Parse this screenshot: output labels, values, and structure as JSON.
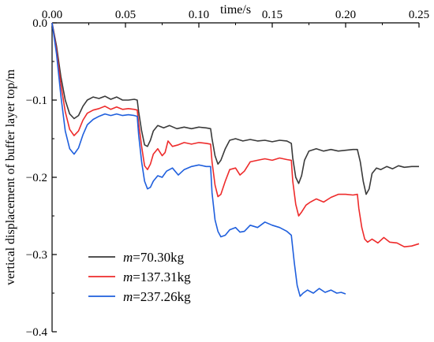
{
  "chart_data": {
    "type": "line",
    "xlabel": "time/s",
    "ylabel": "vertical displacement of buffer layer top/m",
    "xlim": [
      0,
      0.25
    ],
    "ylim": [
      -0.4,
      0
    ],
    "x_axis_position": "top",
    "x_ticks": [
      0.0,
      0.05,
      0.1,
      0.15,
      0.2,
      0.25
    ],
    "x_tick_labels": [
      "0.00",
      "0.05",
      "0.10",
      "0.15",
      "0.20",
      "0.25"
    ],
    "y_ticks": [
      0.0,
      -0.1,
      -0.2,
      -0.3,
      -0.4
    ],
    "y_tick_labels": [
      "0.0",
      "−0.1",
      "−0.2",
      "−0.3",
      "−0.4"
    ],
    "grid": false,
    "legend_position": "bottom-left",
    "series": [
      {
        "name_var": "m",
        "name_value": "=70.30kg",
        "color": "#3a3a3a",
        "points": [
          [
            0.0,
            0.0
          ],
          [
            0.003,
            -0.03
          ],
          [
            0.006,
            -0.07
          ],
          [
            0.009,
            -0.1
          ],
          [
            0.012,
            -0.118
          ],
          [
            0.015,
            -0.124
          ],
          [
            0.018,
            -0.12
          ],
          [
            0.021,
            -0.108
          ],
          [
            0.024,
            -0.1
          ],
          [
            0.028,
            -0.096
          ],
          [
            0.032,
            -0.098
          ],
          [
            0.036,
            -0.095
          ],
          [
            0.04,
            -0.099
          ],
          [
            0.044,
            -0.096
          ],
          [
            0.048,
            -0.1
          ],
          [
            0.052,
            -0.1
          ],
          [
            0.056,
            -0.099
          ],
          [
            0.058,
            -0.1
          ],
          [
            0.059,
            -0.115
          ],
          [
            0.061,
            -0.14
          ],
          [
            0.063,
            -0.158
          ],
          [
            0.065,
            -0.16
          ],
          [
            0.067,
            -0.152
          ],
          [
            0.069,
            -0.14
          ],
          [
            0.072,
            -0.133
          ],
          [
            0.076,
            -0.136
          ],
          [
            0.08,
            -0.133
          ],
          [
            0.085,
            -0.137
          ],
          [
            0.09,
            -0.135
          ],
          [
            0.095,
            -0.137
          ],
          [
            0.1,
            -0.135
          ],
          [
            0.105,
            -0.136
          ],
          [
            0.108,
            -0.137
          ],
          [
            0.109,
            -0.15
          ],
          [
            0.111,
            -0.172
          ],
          [
            0.113,
            -0.183
          ],
          [
            0.115,
            -0.178
          ],
          [
            0.118,
            -0.163
          ],
          [
            0.121,
            -0.152
          ],
          [
            0.125,
            -0.15
          ],
          [
            0.13,
            -0.153
          ],
          [
            0.135,
            -0.151
          ],
          [
            0.14,
            -0.153
          ],
          [
            0.145,
            -0.152
          ],
          [
            0.15,
            -0.154
          ],
          [
            0.155,
            -0.152
          ],
          [
            0.16,
            -0.153
          ],
          [
            0.163,
            -0.156
          ],
          [
            0.164,
            -0.175
          ],
          [
            0.166,
            -0.2
          ],
          [
            0.168,
            -0.208
          ],
          [
            0.17,
            -0.198
          ],
          [
            0.172,
            -0.178
          ],
          [
            0.175,
            -0.166
          ],
          [
            0.18,
            -0.163
          ],
          [
            0.185,
            -0.166
          ],
          [
            0.19,
            -0.164
          ],
          [
            0.195,
            -0.166
          ],
          [
            0.2,
            -0.165
          ],
          [
            0.205,
            -0.164
          ],
          [
            0.208,
            -0.164
          ],
          [
            0.21,
            -0.18
          ],
          [
            0.212,
            -0.205
          ],
          [
            0.214,
            -0.222
          ],
          [
            0.216,
            -0.215
          ],
          [
            0.218,
            -0.195
          ],
          [
            0.221,
            -0.188
          ],
          [
            0.224,
            -0.19
          ],
          [
            0.228,
            -0.186
          ],
          [
            0.232,
            -0.189
          ],
          [
            0.236,
            -0.185
          ],
          [
            0.24,
            -0.187
          ],
          [
            0.245,
            -0.186
          ],
          [
            0.25,
            -0.186
          ]
        ]
      },
      {
        "name_var": "m",
        "name_value": "=137.31kg",
        "color": "#ee2b2b",
        "points": [
          [
            0.0,
            0.0
          ],
          [
            0.003,
            -0.035
          ],
          [
            0.006,
            -0.08
          ],
          [
            0.009,
            -0.115
          ],
          [
            0.012,
            -0.138
          ],
          [
            0.015,
            -0.146
          ],
          [
            0.018,
            -0.14
          ],
          [
            0.021,
            -0.126
          ],
          [
            0.024,
            -0.117
          ],
          [
            0.028,
            -0.113
          ],
          [
            0.032,
            -0.111
          ],
          [
            0.036,
            -0.108
          ],
          [
            0.04,
            -0.112
          ],
          [
            0.044,
            -0.109
          ],
          [
            0.048,
            -0.112
          ],
          [
            0.052,
            -0.111
          ],
          [
            0.056,
            -0.112
          ],
          [
            0.058,
            -0.113
          ],
          [
            0.059,
            -0.13
          ],
          [
            0.061,
            -0.16
          ],
          [
            0.063,
            -0.185
          ],
          [
            0.065,
            -0.19
          ],
          [
            0.067,
            -0.183
          ],
          [
            0.069,
            -0.17
          ],
          [
            0.072,
            -0.163
          ],
          [
            0.075,
            -0.172
          ],
          [
            0.077,
            -0.168
          ],
          [
            0.079,
            -0.153
          ],
          [
            0.082,
            -0.16
          ],
          [
            0.086,
            -0.158
          ],
          [
            0.09,
            -0.155
          ],
          [
            0.095,
            -0.157
          ],
          [
            0.1,
            -0.155
          ],
          [
            0.105,
            -0.156
          ],
          [
            0.108,
            -0.157
          ],
          [
            0.109,
            -0.18
          ],
          [
            0.111,
            -0.21
          ],
          [
            0.113,
            -0.225
          ],
          [
            0.115,
            -0.222
          ],
          [
            0.118,
            -0.205
          ],
          [
            0.121,
            -0.19
          ],
          [
            0.125,
            -0.188
          ],
          [
            0.128,
            -0.197
          ],
          [
            0.131,
            -0.192
          ],
          [
            0.135,
            -0.18
          ],
          [
            0.14,
            -0.178
          ],
          [
            0.145,
            -0.176
          ],
          [
            0.15,
            -0.178
          ],
          [
            0.155,
            -0.175
          ],
          [
            0.16,
            -0.177
          ],
          [
            0.163,
            -0.178
          ],
          [
            0.164,
            -0.205
          ],
          [
            0.166,
            -0.235
          ],
          [
            0.168,
            -0.25
          ],
          [
            0.17,
            -0.245
          ],
          [
            0.173,
            -0.236
          ],
          [
            0.176,
            -0.232
          ],
          [
            0.18,
            -0.228
          ],
          [
            0.185,
            -0.232
          ],
          [
            0.19,
            -0.226
          ],
          [
            0.195,
            -0.222
          ],
          [
            0.2,
            -0.222
          ],
          [
            0.205,
            -0.223
          ],
          [
            0.208,
            -0.222
          ],
          [
            0.209,
            -0.24
          ],
          [
            0.211,
            -0.265
          ],
          [
            0.213,
            -0.28
          ],
          [
            0.215,
            -0.284
          ],
          [
            0.218,
            -0.28
          ],
          [
            0.222,
            -0.285
          ],
          [
            0.226,
            -0.278
          ],
          [
            0.23,
            -0.284
          ],
          [
            0.235,
            -0.285
          ],
          [
            0.24,
            -0.29
          ],
          [
            0.245,
            -0.289
          ],
          [
            0.25,
            -0.286
          ]
        ]
      },
      {
        "name_var": "m",
        "name_value": "=237.26kg",
        "color": "#1f5fdd",
        "points": [
          [
            0.0,
            0.0
          ],
          [
            0.003,
            -0.04
          ],
          [
            0.006,
            -0.095
          ],
          [
            0.009,
            -0.14
          ],
          [
            0.012,
            -0.163
          ],
          [
            0.015,
            -0.17
          ],
          [
            0.018,
            -0.162
          ],
          [
            0.021,
            -0.145
          ],
          [
            0.024,
            -0.132
          ],
          [
            0.028,
            -0.125
          ],
          [
            0.032,
            -0.121
          ],
          [
            0.036,
            -0.118
          ],
          [
            0.04,
            -0.12
          ],
          [
            0.044,
            -0.118
          ],
          [
            0.048,
            -0.12
          ],
          [
            0.052,
            -0.119
          ],
          [
            0.056,
            -0.12
          ],
          [
            0.058,
            -0.121
          ],
          [
            0.059,
            -0.145
          ],
          [
            0.061,
            -0.18
          ],
          [
            0.063,
            -0.205
          ],
          [
            0.065,
            -0.215
          ],
          [
            0.067,
            -0.213
          ],
          [
            0.069,
            -0.205
          ],
          [
            0.072,
            -0.198
          ],
          [
            0.075,
            -0.2
          ],
          [
            0.078,
            -0.192
          ],
          [
            0.082,
            -0.188
          ],
          [
            0.086,
            -0.197
          ],
          [
            0.09,
            -0.19
          ],
          [
            0.095,
            -0.186
          ],
          [
            0.1,
            -0.184
          ],
          [
            0.105,
            -0.186
          ],
          [
            0.108,
            -0.186
          ],
          [
            0.109,
            -0.22
          ],
          [
            0.111,
            -0.255
          ],
          [
            0.113,
            -0.27
          ],
          [
            0.115,
            -0.277
          ],
          [
            0.118,
            -0.275
          ],
          [
            0.121,
            -0.268
          ],
          [
            0.125,
            -0.265
          ],
          [
            0.128,
            -0.271
          ],
          [
            0.131,
            -0.27
          ],
          [
            0.135,
            -0.262
          ],
          [
            0.14,
            -0.265
          ],
          [
            0.145,
            -0.258
          ],
          [
            0.15,
            -0.262
          ],
          [
            0.155,
            -0.265
          ],
          [
            0.16,
            -0.27
          ],
          [
            0.163,
            -0.275
          ],
          [
            0.165,
            -0.31
          ],
          [
            0.167,
            -0.34
          ],
          [
            0.169,
            -0.354
          ],
          [
            0.171,
            -0.35
          ],
          [
            0.174,
            -0.346
          ],
          [
            0.178,
            -0.35
          ],
          [
            0.182,
            -0.344
          ],
          [
            0.186,
            -0.349
          ],
          [
            0.19,
            -0.346
          ],
          [
            0.194,
            -0.35
          ],
          [
            0.197,
            -0.349
          ],
          [
            0.2,
            -0.351
          ]
        ]
      }
    ]
  }
}
